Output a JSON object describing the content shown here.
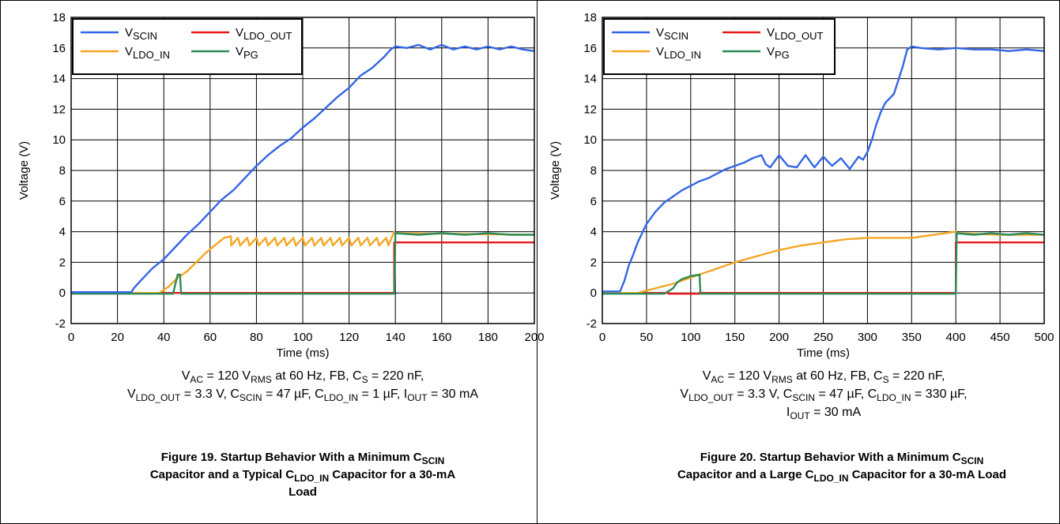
{
  "chart_data": [
    {
      "type": "line",
      "xlabel": "Time (ms)",
      "ylabel": "Voltage (V)",
      "xlim": [
        0,
        200
      ],
      "ylim": [
        -2,
        18
      ],
      "xticks": [
        "0",
        "20",
        "40",
        "60",
        "80",
        "100",
        "120",
        "140",
        "160",
        "180",
        "200"
      ],
      "yticks": [
        "-2",
        "0",
        "2",
        "4",
        "6",
        "8",
        "10",
        "12",
        "14",
        "16",
        "18"
      ],
      "grid": true,
      "legend_position": "top-left",
      "series": [
        {
          "main": "V",
          "sub": "SCIN",
          "color": "#3366e6",
          "x": [
            0,
            26,
            27,
            30,
            35,
            40,
            45,
            50,
            55,
            60,
            65,
            70,
            75,
            80,
            85,
            90,
            95,
            100,
            105,
            110,
            115,
            120,
            125,
            130,
            135,
            138,
            140,
            145,
            150,
            155,
            160,
            165,
            170,
            175,
            180,
            185,
            190,
            195,
            200
          ],
          "y": [
            0.05,
            0.05,
            0.3,
            0.8,
            1.6,
            2.2,
            3.0,
            3.8,
            4.5,
            5.3,
            6.1,
            6.7,
            7.5,
            8.3,
            9.0,
            9.6,
            10.1,
            10.8,
            11.4,
            12.1,
            12.8,
            13.4,
            14.2,
            14.7,
            15.4,
            15.9,
            16.1,
            16.0,
            16.2,
            15.9,
            16.2,
            15.9,
            16.1,
            15.9,
            16.1,
            15.9,
            16.1,
            15.9,
            15.8
          ]
        },
        {
          "main": "V",
          "sub": "LDO_OUT",
          "color": "#e61919",
          "x": [
            0,
            139.5,
            139.5,
            200
          ],
          "y": [
            0,
            0,
            3.3,
            3.3
          ]
        },
        {
          "main": "V",
          "sub": "LDO_IN",
          "color": "#f5a623",
          "x": [
            0,
            38,
            42,
            46,
            50,
            54,
            58,
            62,
            66,
            69,
            69.1,
            72,
            73,
            76,
            77,
            80,
            81,
            84,
            85,
            88,
            89,
            92,
            93,
            96,
            97,
            100,
            101,
            104,
            105,
            108,
            109,
            112,
            113,
            116,
            117,
            120,
            121,
            124,
            125,
            128,
            129,
            132,
            133,
            136,
            137,
            139.5,
            140,
            200
          ],
          "y": [
            0,
            0,
            0.4,
            1.0,
            1.4,
            2.0,
            2.6,
            3.1,
            3.6,
            3.7,
            3.1,
            3.6,
            3.1,
            3.6,
            3.1,
            3.6,
            3.1,
            3.6,
            3.1,
            3.6,
            3.1,
            3.6,
            3.1,
            3.6,
            3.1,
            3.6,
            3.1,
            3.6,
            3.1,
            3.6,
            3.1,
            3.6,
            3.1,
            3.6,
            3.1,
            3.6,
            3.1,
            3.6,
            3.1,
            3.6,
            3.1,
            3.6,
            3.1,
            3.6,
            3.1,
            4.0,
            3.9,
            3.8
          ]
        },
        {
          "main": "V",
          "sub": "PG",
          "color": "#2e8b57",
          "x": [
            0,
            44,
            46,
            47,
            47.5,
            139.5,
            140,
            150,
            160,
            170,
            180,
            190,
            200
          ],
          "y": [
            -0.05,
            -0.05,
            1.2,
            1.2,
            -0.05,
            -0.05,
            3.9,
            3.8,
            3.9,
            3.8,
            3.9,
            3.8,
            3.8
          ]
        }
      ],
      "caption": {
        "l1": [
          "V",
          "AC",
          " = 120 V",
          "RMS",
          " at 60 Hz, FB, C",
          "S",
          " = 220 nF,"
        ],
        "l2": [
          "V",
          "LDO_OUT",
          " = 3.3 V, C",
          "SCIN",
          " = 47 µF, C",
          "LDO_IN",
          " = 1 µF, I",
          "OUT",
          " = 30 mA"
        ]
      },
      "figure_title": {
        "l1": [
          "Figure 19. Startup Behavior With a Minimum C",
          "SCIN"
        ],
        "l2": [
          "Capacitor and a Typical C",
          "LDO_IN",
          " Capacitor for a 30-mA"
        ],
        "l3": [
          "Load"
        ]
      }
    },
    {
      "type": "line",
      "xlabel": "Time (ms)",
      "ylabel": "Voltage (V)",
      "xlim": [
        0,
        500
      ],
      "ylim": [
        -2,
        18
      ],
      "xticks": [
        "0",
        "50",
        "100",
        "150",
        "200",
        "250",
        "300",
        "350",
        "400",
        "450",
        "500"
      ],
      "yticks": [
        "-2",
        "0",
        "2",
        "4",
        "6",
        "8",
        "10",
        "12",
        "14",
        "16",
        "18"
      ],
      "grid": true,
      "legend_position": "top-left",
      "series": [
        {
          "main": "V",
          "sub": "SCIN",
          "color": "#3366e6",
          "x": [
            0,
            20,
            25,
            30,
            35,
            40,
            45,
            50,
            60,
            70,
            80,
            90,
            100,
            110,
            120,
            130,
            140,
            150,
            160,
            170,
            180,
            185,
            190,
            200,
            210,
            220,
            230,
            240,
            250,
            260,
            270,
            280,
            290,
            295,
            300,
            305,
            310,
            315,
            320,
            330,
            340,
            345,
            350,
            360,
            380,
            400,
            420,
            440,
            460,
            480,
            500
          ],
          "y": [
            0.1,
            0.1,
            0.8,
            1.8,
            2.5,
            3.3,
            3.9,
            4.5,
            5.3,
            5.9,
            6.3,
            6.7,
            7.0,
            7.3,
            7.5,
            7.8,
            8.1,
            8.3,
            8.5,
            8.8,
            9.0,
            8.4,
            8.2,
            9.0,
            8.3,
            8.2,
            9.0,
            8.2,
            8.9,
            8.3,
            8.8,
            8.1,
            8.9,
            8.7,
            9.2,
            10.0,
            11.0,
            11.8,
            12.4,
            13.0,
            14.8,
            15.9,
            16.1,
            16.0,
            15.9,
            16.0,
            15.9,
            15.9,
            15.8,
            15.9,
            15.8
          ]
        },
        {
          "main": "V",
          "sub": "LDO_OUT",
          "color": "#e61919",
          "x": [
            0,
            75,
            75,
            110,
            110,
            400,
            400,
            500
          ],
          "y": [
            0,
            0,
            -0.05,
            -0.05,
            0,
            0,
            3.3,
            3.3
          ]
        },
        {
          "main": "V",
          "sub": "LDO_IN",
          "color": "#f5a623",
          "x": [
            0,
            40,
            60,
            80,
            100,
            125,
            150,
            175,
            200,
            225,
            250,
            275,
            300,
            325,
            350,
            375,
            400,
            401,
            450,
            500
          ],
          "y": [
            0,
            0,
            0.3,
            0.6,
            1.0,
            1.5,
            2.0,
            2.4,
            2.8,
            3.1,
            3.3,
            3.5,
            3.6,
            3.6,
            3.6,
            3.8,
            4.0,
            3.9,
            3.8,
            3.8
          ]
        },
        {
          "main": "V",
          "sub": "PG",
          "color": "#2e8b57",
          "x": [
            0,
            70,
            80,
            85,
            90,
            95,
            100,
            105,
            110,
            111,
            400,
            401,
            420,
            440,
            460,
            480,
            500
          ],
          "y": [
            -0.05,
            -0.05,
            0.3,
            0.7,
            0.9,
            1.0,
            1.1,
            1.15,
            1.2,
            -0.05,
            -0.05,
            3.9,
            3.8,
            3.9,
            3.8,
            3.9,
            3.8
          ]
        }
      ],
      "caption": {
        "l1": [
          "V",
          "AC",
          " = 120 V",
          "RMS",
          " at 60 Hz, FB, C",
          "S",
          " = 220 nF,"
        ],
        "l2": [
          "V",
          "LDO_OUT",
          " = 3.3 V, C",
          "SCIN",
          " = 47 µF, C",
          "LDO_IN",
          " = 330 µF,"
        ],
        "l3": [
          "I",
          "OUT",
          " = 30 mA"
        ]
      },
      "figure_title": {
        "l1": [
          "Figure 20. Startup Behavior With a Minimum C",
          "SCIN"
        ],
        "l2": [
          "Capacitor and a Large C",
          "LDO_IN",
          " Capacitor for a 30-mA Load"
        ]
      }
    }
  ]
}
